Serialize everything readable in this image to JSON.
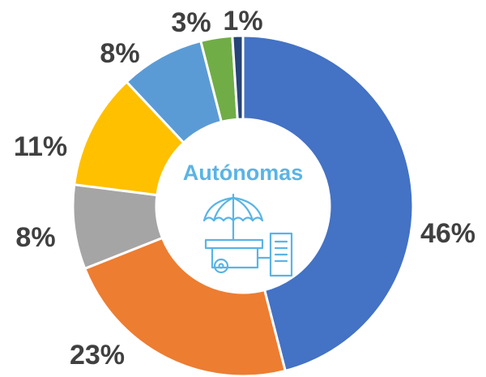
{
  "chart_data": {
    "type": "donut",
    "title": "Autónomas",
    "categories": [
      null,
      null,
      null,
      null,
      null,
      null,
      null
    ],
    "values": [
      46,
      23,
      8,
      11,
      8,
      3,
      1
    ],
    "value_labels": [
      "46%",
      "23%",
      "8%",
      "11%",
      "8%",
      "3%",
      "1%"
    ],
    "colors": [
      "#4472c4",
      "#ed7d31",
      "#a5a5a5",
      "#ffc000",
      "#5b9bd5",
      "#70ad47",
      "#264478"
    ]
  }
}
